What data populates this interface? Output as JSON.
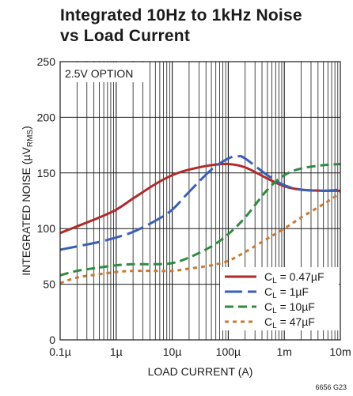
{
  "title_lines": [
    "Integrated 10Hz to 1kHz Noise",
    "vs Load Current"
  ],
  "chart_data": {
    "type": "line",
    "title": "Integrated 10Hz to 1kHz Noise vs Load Current",
    "xlabel": "LOAD CURRENT (A)",
    "ylabel_main": "INTEGRATED NOISE (µV",
    "ylabel_sub": "RMS",
    "ylabel_end": ")",
    "x_scale": "log",
    "xlim": [
      1e-07,
      0.01
    ],
    "ylim": [
      0,
      250
    ],
    "x_ticks": [
      {
        "value": 1e-07,
        "label": "0.1µ"
      },
      {
        "value": 1e-06,
        "label": "1µ"
      },
      {
        "value": 1e-05,
        "label": "10µ"
      },
      {
        "value": 0.0001,
        "label": "100µ"
      },
      {
        "value": 0.001,
        "label": "1m"
      },
      {
        "value": 0.01,
        "label": "10m"
      }
    ],
    "y_ticks": [
      0,
      50,
      100,
      150,
      200,
      250
    ],
    "grid": true,
    "annotation": "2.5V OPTION",
    "legend_position": "bottom-right",
    "legend_label_prefix": "C",
    "legend_label_sub": "L",
    "figure_code": "6656 G23",
    "series": [
      {
        "name": "CL = 0.47µF",
        "label_value": " = 0.47µF",
        "color": "#b02a2a",
        "dash": "solid",
        "points": [
          [
            1e-07,
            96
          ],
          [
            2e-07,
            102
          ],
          [
            5e-07,
            110
          ],
          [
            1e-06,
            117
          ],
          [
            2e-06,
            127
          ],
          [
            5e-06,
            140
          ],
          [
            1e-05,
            148
          ],
          [
            2e-05,
            153
          ],
          [
            5e-05,
            157
          ],
          [
            0.0001,
            158
          ],
          [
            0.0002,
            155
          ],
          [
            0.0005,
            145
          ],
          [
            0.001,
            138
          ],
          [
            0.002,
            135
          ],
          [
            0.005,
            134
          ],
          [
            0.01,
            134
          ]
        ]
      },
      {
        "name": "CL = 1µF",
        "label_value": " = 1µF",
        "color": "#3a5fb5",
        "dash": "long",
        "points": [
          [
            1e-07,
            81
          ],
          [
            2e-07,
            84
          ],
          [
            5e-07,
            88
          ],
          [
            1e-06,
            92
          ],
          [
            2e-06,
            97
          ],
          [
            5e-06,
            107
          ],
          [
            1e-05,
            117
          ],
          [
            2e-05,
            133
          ],
          [
            5e-05,
            153
          ],
          [
            0.0001,
            163
          ],
          [
            0.00015,
            165
          ],
          [
            0.0002,
            163
          ],
          [
            0.0005,
            148
          ],
          [
            0.001,
            139
          ],
          [
            0.002,
            135
          ],
          [
            0.005,
            134
          ],
          [
            0.01,
            135
          ]
        ]
      },
      {
        "name": "CL = 10µF",
        "label_value": " = 10µF",
        "color": "#2e8b40",
        "dash": "medium",
        "points": [
          [
            1e-07,
            58
          ],
          [
            2e-07,
            62
          ],
          [
            5e-07,
            65
          ],
          [
            1e-06,
            67
          ],
          [
            2e-06,
            68
          ],
          [
            5e-06,
            68
          ],
          [
            1e-05,
            69
          ],
          [
            2e-05,
            74
          ],
          [
            5e-05,
            84
          ],
          [
            0.0001,
            95
          ],
          [
            0.0002,
            110
          ],
          [
            0.0005,
            135
          ],
          [
            0.001,
            148
          ],
          [
            0.002,
            154
          ],
          [
            0.005,
            157
          ],
          [
            0.01,
            158
          ]
        ]
      },
      {
        "name": "CL = 47µF",
        "label_value": " = 47µF",
        "color": "#c87a32",
        "dash": "short",
        "points": [
          [
            1e-07,
            51
          ],
          [
            2e-07,
            56
          ],
          [
            5e-07,
            59
          ],
          [
            1e-06,
            61
          ],
          [
            2e-06,
            62
          ],
          [
            5e-06,
            62
          ],
          [
            1e-05,
            62
          ],
          [
            2e-05,
            64
          ],
          [
            5e-05,
            67
          ],
          [
            0.0001,
            71
          ],
          [
            0.0002,
            79
          ],
          [
            0.0005,
            91
          ],
          [
            0.001,
            100
          ],
          [
            0.002,
            110
          ],
          [
            0.005,
            122
          ],
          [
            0.01,
            132
          ]
        ]
      }
    ]
  }
}
